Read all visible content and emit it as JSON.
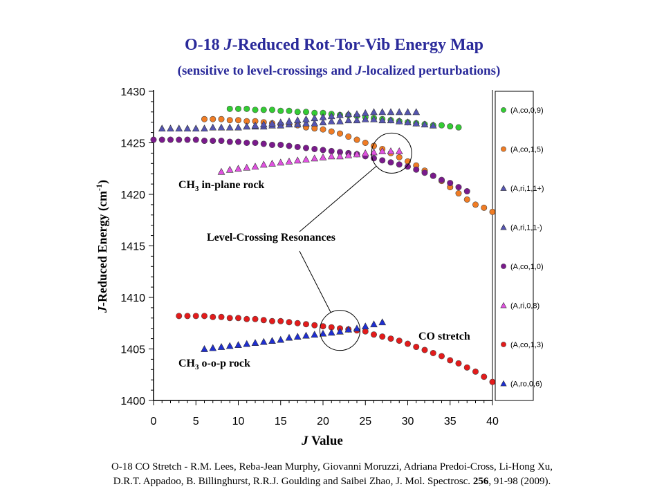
{
  "chart_data": {
    "type": "scatter",
    "title": "O-18 J-Reduced Rot-Tor-Vib Energy Map",
    "subtitle": "(sensitive to level-crossings and J-localized perturbations)",
    "xlabel": "J Value",
    "ylabel": "J-Reduced Energy (cm-1)",
    "xlim": [
      0,
      40
    ],
    "ylim": [
      1400,
      1430
    ],
    "xticks": [
      "0",
      "5",
      "10",
      "15",
      "20",
      "25",
      "30",
      "35",
      "40"
    ],
    "yticks": [
      "1400",
      "1405",
      "1410",
      "1415",
      "1420",
      "1425",
      "1430"
    ],
    "grid": false,
    "legend_position": "right",
    "series": [
      {
        "name": "(A,co,0,9)",
        "marker": "circle",
        "color": "#33cc33",
        "x": [
          9,
          10,
          11,
          12,
          13,
          14,
          15,
          16,
          17,
          18,
          19,
          20,
          21,
          22,
          23,
          24,
          25,
          26,
          27,
          28,
          29,
          30,
          31,
          32,
          33,
          34,
          35,
          36
        ],
        "y": [
          1428.3,
          1428.3,
          1428.3,
          1428.2,
          1428.2,
          1428.2,
          1428.1,
          1428.1,
          1428.0,
          1428.0,
          1427.9,
          1427.9,
          1427.8,
          1427.7,
          1427.7,
          1427.6,
          1427.5,
          1427.4,
          1427.3,
          1427.2,
          1427.1,
          1427.0,
          1426.9,
          1426.8,
          1426.7,
          1426.7,
          1426.6,
          1426.5
        ]
      },
      {
        "name": "(A,co,1,5)",
        "marker": "circle",
        "color": "#f07c24",
        "x": [
          6,
          7,
          8,
          9,
          10,
          11,
          12,
          13,
          14,
          15,
          16,
          17,
          18,
          19,
          20,
          21,
          22,
          23,
          24,
          25,
          26,
          27,
          28,
          29,
          30,
          31,
          32,
          33,
          34,
          35,
          36,
          37,
          38,
          39,
          40
        ],
        "y": [
          1427.3,
          1427.3,
          1427.3,
          1427.2,
          1427.2,
          1427.1,
          1427.1,
          1427.0,
          1426.9,
          1426.8,
          1426.8,
          1426.7,
          1426.5,
          1426.4,
          1426.3,
          1426.1,
          1425.9,
          1425.6,
          1425.3,
          1425.0,
          1424.7,
          1424.4,
          1424.0,
          1423.6,
          1423.2,
          1422.8,
          1422.3,
          1421.8,
          1421.3,
          1420.7,
          1420.1,
          1419.5,
          1419.0,
          1418.7,
          1418.3
        ]
      },
      {
        "name": "(A,ri,1,1+)",
        "marker": "triangle",
        "color": "#5555b0",
        "x": [
          1,
          2,
          3,
          4,
          5,
          6,
          7,
          8,
          9,
          10,
          11,
          12,
          13,
          14,
          15,
          16,
          17,
          18,
          19,
          20,
          21,
          22,
          23,
          24,
          25,
          26,
          27,
          28,
          29,
          30,
          31,
          32,
          33
        ],
        "y": [
          1426.4,
          1426.4,
          1426.4,
          1426.4,
          1426.4,
          1426.4,
          1426.5,
          1426.5,
          1426.5,
          1426.5,
          1426.6,
          1426.6,
          1426.6,
          1426.7,
          1426.7,
          1426.8,
          1426.8,
          1426.9,
          1426.9,
          1427.0,
          1427.1,
          1427.1,
          1427.2,
          1427.2,
          1427.3,
          1427.3,
          1427.2,
          1427.2,
          1427.1,
          1427.0,
          1426.9,
          1426.8,
          1426.7
        ]
      },
      {
        "name": "(A,ri,1,1-)",
        "marker": "triangle",
        "color": "#5555b0",
        "x": [
          11,
          12,
          13,
          14,
          15,
          16,
          17,
          18,
          19,
          20,
          21,
          22,
          23,
          24,
          25,
          26,
          27,
          28,
          29,
          30,
          31
        ],
        "y": [
          1426.6,
          1426.7,
          1426.8,
          1426.9,
          1427.0,
          1427.1,
          1427.2,
          1427.3,
          1427.4,
          1427.5,
          1427.6,
          1427.7,
          1427.8,
          1427.8,
          1427.9,
          1428.0,
          1428.0,
          1428.0,
          1428.0,
          1428.0,
          1428.0
        ]
      },
      {
        "name": "(A,co,1,0)",
        "marker": "circle",
        "color": "#7a1a8c",
        "x": [
          0,
          1,
          2,
          3,
          4,
          5,
          6,
          7,
          8,
          9,
          10,
          11,
          12,
          13,
          14,
          15,
          16,
          17,
          18,
          19,
          20,
          21,
          22,
          23,
          24,
          25,
          26,
          27,
          28,
          29,
          30,
          31,
          32,
          33,
          34,
          35,
          36,
          37
        ],
        "y": [
          1425.3,
          1425.3,
          1425.3,
          1425.3,
          1425.3,
          1425.3,
          1425.2,
          1425.2,
          1425.2,
          1425.1,
          1425.1,
          1425.0,
          1425.0,
          1424.9,
          1424.8,
          1424.8,
          1424.7,
          1424.6,
          1424.5,
          1424.4,
          1424.3,
          1424.2,
          1424.1,
          1424.0,
          1423.9,
          1423.7,
          1423.5,
          1423.3,
          1423.1,
          1422.9,
          1422.7,
          1422.4,
          1422.1,
          1421.8,
          1421.4,
          1421.1,
          1420.7,
          1420.3
        ]
      },
      {
        "name": "(A,ri,0,8)",
        "marker": "triangle",
        "color": "#e052e0",
        "x": [
          8,
          9,
          10,
          11,
          12,
          13,
          14,
          15,
          16,
          17,
          18,
          19,
          20,
          21,
          22,
          23,
          24,
          25,
          26,
          27,
          28,
          29
        ],
        "y": [
          1422.2,
          1422.4,
          1422.5,
          1422.6,
          1422.7,
          1422.9,
          1423.0,
          1423.1,
          1423.2,
          1423.3,
          1423.4,
          1423.5,
          1423.6,
          1423.7,
          1423.7,
          1423.8,
          1423.9,
          1424.0,
          1424.1,
          1424.2,
          1424.2,
          1424.2
        ]
      },
      {
        "name": "(A,co,1,3)",
        "marker": "circle",
        "color": "#e31b1b",
        "x": [
          3,
          4,
          5,
          6,
          7,
          8,
          9,
          10,
          11,
          12,
          13,
          14,
          15,
          16,
          17,
          18,
          19,
          20,
          21,
          22,
          23,
          24,
          25,
          26,
          27,
          28,
          29,
          30,
          31,
          32,
          33,
          34,
          35,
          36,
          37,
          38,
          39,
          40
        ],
        "y": [
          1408.2,
          1408.2,
          1408.2,
          1408.2,
          1408.1,
          1408.1,
          1408.0,
          1408.0,
          1407.9,
          1407.9,
          1407.8,
          1407.7,
          1407.7,
          1407.6,
          1407.5,
          1407.4,
          1407.3,
          1407.2,
          1407.1,
          1407.0,
          1406.9,
          1406.8,
          1406.7,
          1406.4,
          1406.2,
          1406.0,
          1405.8,
          1405.5,
          1405.2,
          1404.9,
          1404.6,
          1404.3,
          1403.9,
          1403.6,
          1403.2,
          1402.8,
          1402.3,
          1401.8
        ]
      },
      {
        "name": "(A,ro,0,6)",
        "marker": "triangle",
        "color": "#1f2fd1",
        "x": [
          6,
          7,
          8,
          9,
          10,
          11,
          12,
          13,
          14,
          15,
          16,
          17,
          18,
          19,
          20,
          21,
          22,
          23,
          24,
          25,
          26,
          27
        ],
        "y": [
          1405.0,
          1405.1,
          1405.2,
          1405.3,
          1405.4,
          1405.5,
          1405.6,
          1405.7,
          1405.8,
          1405.9,
          1406.1,
          1406.2,
          1406.3,
          1406.4,
          1406.5,
          1406.6,
          1406.7,
          1406.9,
          1407.0,
          1407.2,
          1407.4,
          1407.6
        ]
      }
    ],
    "annotations": [
      {
        "text": "CH3 in-plane rock",
        "main": "CH",
        "sub": "3",
        "rest": " in-plane rock"
      },
      {
        "text": "Level-Crossing Resonances"
      },
      {
        "text": "CO stretch"
      },
      {
        "text": "CH3 o-o-p rock",
        "main": "CH",
        "sub": "3",
        "rest": " o-o-p rock"
      }
    ],
    "resonance_circles": [
      {
        "x": 28.1,
        "y": 1424.0
      },
      {
        "x": 22.0,
        "y": 1406.8
      }
    ]
  },
  "citation": {
    "line1": "O-18 CO Stretch - R.M. Lees, Reba-Jean Murphy, Giovanni Moruzzi, Adriana Predoi-Cross, Li-Hong Xu,",
    "line2_pre": "D.R.T. Appadoo, B. Billinghurst, R.R.J. Goulding and Saibei Zhao, J. Mol. Spectrosc. ",
    "line2_vol": "256",
    "line2_post": ", 91-98 (2009)."
  }
}
